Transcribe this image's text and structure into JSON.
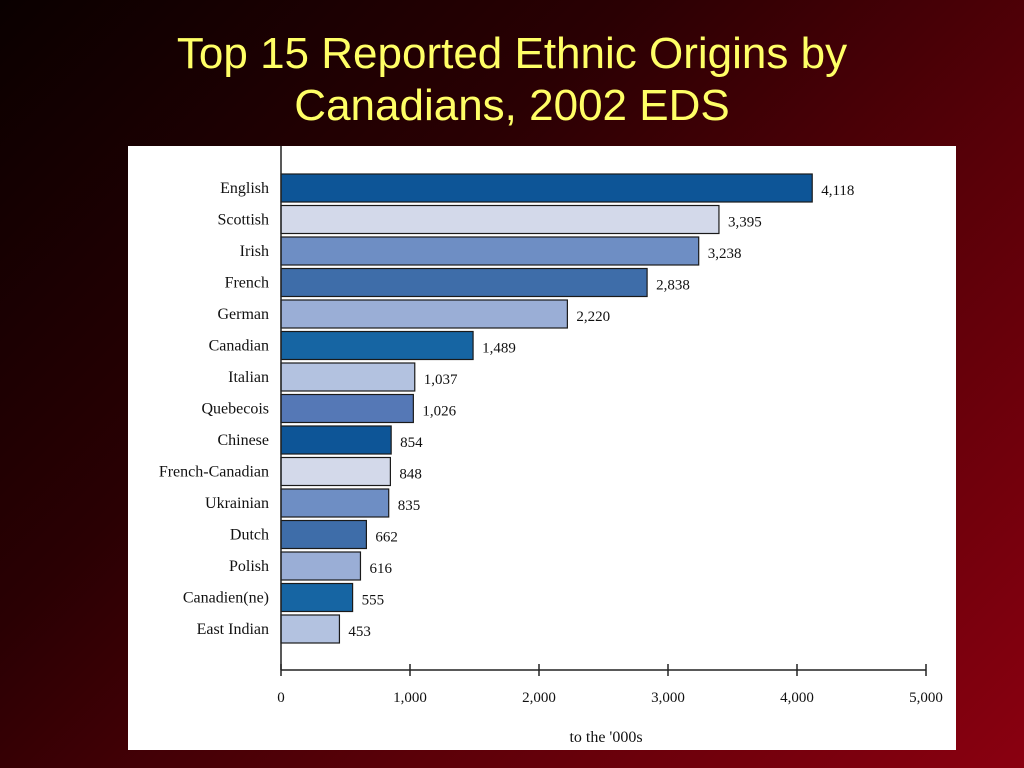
{
  "slide": {
    "title_line1": "Top 15 Reported Ethnic Origins by",
    "title_line2": "Canadians, 2002 EDS"
  },
  "chart_data": {
    "type": "bar",
    "orientation": "horizontal",
    "title": "",
    "xlabel": "to the '000s",
    "ylabel": "",
    "xlim": [
      0,
      5000
    ],
    "x_ticks": [
      0,
      1000,
      2000,
      3000,
      4000,
      5000
    ],
    "x_tick_labels": [
      "0",
      "1,000",
      "2,000",
      "3,000",
      "4,000",
      "5,000"
    ],
    "grid": false,
    "categories": [
      "English",
      "Scottish",
      "Irish",
      "French",
      "German",
      "Canadian",
      "Italian",
      "Quebecois",
      "Chinese",
      "French-Canadian",
      "Ukrainian",
      "Dutch",
      "Polish",
      "Canadien(ne)",
      "East Indian"
    ],
    "values": [
      4118,
      3395,
      3238,
      2838,
      2220,
      1489,
      1037,
      1026,
      854,
      848,
      835,
      662,
      616,
      555,
      453
    ],
    "value_labels": [
      "4,118",
      "3,395",
      "3,238",
      "2,838",
      "2,220",
      "1,489",
      "1,037",
      "1,026",
      "854",
      "848",
      "835",
      "662",
      "616",
      "555",
      "453"
    ],
    "bar_colors": [
      "#0d5597",
      "#d3d9ea",
      "#6e8ec4",
      "#3e6da9",
      "#9aaed6",
      "#1665a3",
      "#b3c2e0",
      "#5578b6",
      "#0d5597",
      "#d3d9ea",
      "#6e8ec4",
      "#3e6da9",
      "#9aaed6",
      "#1665a3",
      "#b3c2e0"
    ]
  }
}
